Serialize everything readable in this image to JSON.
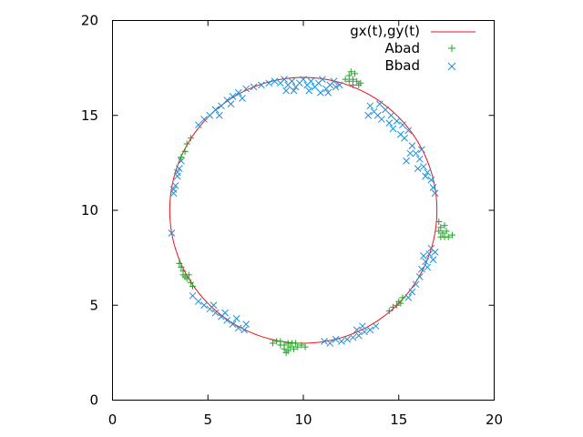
{
  "chart_data": {
    "type": "scatter",
    "title": "",
    "xlabel": "",
    "ylabel": "",
    "xlim": [
      0,
      20
    ],
    "ylim": [
      0,
      20
    ],
    "xticks": [
      "0",
      "5",
      "10",
      "15",
      "20"
    ],
    "yticks": [
      "0",
      "5",
      "10",
      "15",
      "20"
    ],
    "grid": false,
    "legend_position": "top-right",
    "series": [
      {
        "name": "gx(t),gy(t)",
        "kind": "line",
        "color": "#e8131b",
        "center": [
          10,
          10
        ],
        "radius": 7
      },
      {
        "name": "Abad",
        "kind": "points",
        "marker": "plus",
        "color": "#16a81d",
        "points": [
          [
            12.2,
            16.9
          ],
          [
            12.4,
            16.8
          ],
          [
            12.4,
            17.1
          ],
          [
            12.6,
            16.9
          ],
          [
            12.7,
            17.2
          ],
          [
            12.8,
            16.8
          ],
          [
            12.6,
            16.6
          ],
          [
            12.9,
            16.6
          ],
          [
            12.5,
            17.3
          ],
          [
            13.0,
            16.7
          ],
          [
            17.1,
            9.4
          ],
          [
            17.2,
            9.1
          ],
          [
            17.4,
            9.2
          ],
          [
            17.3,
            8.8
          ],
          [
            17.5,
            8.9
          ],
          [
            17.6,
            8.6
          ],
          [
            17.8,
            8.7
          ],
          [
            17.1,
            8.9
          ],
          [
            17.4,
            8.6
          ],
          [
            17.2,
            8.6
          ],
          [
            14.5,
            4.7
          ],
          [
            14.7,
            4.9
          ],
          [
            14.9,
            5.0
          ],
          [
            15.0,
            5.2
          ],
          [
            15.2,
            5.4
          ],
          [
            15.1,
            5.1
          ],
          [
            8.4,
            3.0
          ],
          [
            8.6,
            3.1
          ],
          [
            8.8,
            2.9
          ],
          [
            9.0,
            2.7
          ],
          [
            9.2,
            2.6
          ],
          [
            9.3,
            2.8
          ],
          [
            9.5,
            2.7
          ],
          [
            9.7,
            2.8
          ],
          [
            9.9,
            2.9
          ],
          [
            10.1,
            2.8
          ],
          [
            9.2,
            3.0
          ],
          [
            9.0,
            2.9
          ],
          [
            9.4,
            3.0
          ],
          [
            9.6,
            3.0
          ],
          [
            8.8,
            3.1
          ],
          [
            9.1,
            2.5
          ],
          [
            3.5,
            7.2
          ],
          [
            3.6,
            7.0
          ],
          [
            3.7,
            6.8
          ],
          [
            3.8,
            6.5
          ],
          [
            3.9,
            6.4
          ],
          [
            4.1,
            6.2
          ],
          [
            4.2,
            6.0
          ],
          [
            3.7,
            6.6
          ],
          [
            4.0,
            6.6
          ],
          [
            3.9,
            13.5
          ],
          [
            4.1,
            13.8
          ],
          [
            3.8,
            13.1
          ],
          [
            3.6,
            12.8
          ]
        ]
      },
      {
        "name": "Bbad",
        "kind": "points",
        "marker": "cross",
        "color": "#1f8fd8",
        "points": [
          [
            8.5,
            16.8
          ],
          [
            8.8,
            16.7
          ],
          [
            9.0,
            16.9
          ],
          [
            9.2,
            16.6
          ],
          [
            9.4,
            16.8
          ],
          [
            9.6,
            16.5
          ],
          [
            9.8,
            16.7
          ],
          [
            10.0,
            16.9
          ],
          [
            10.2,
            16.6
          ],
          [
            10.4,
            16.8
          ],
          [
            10.6,
            16.5
          ],
          [
            10.8,
            16.7
          ],
          [
            11.0,
            16.9
          ],
          [
            11.2,
            16.4
          ],
          [
            11.4,
            16.6
          ],
          [
            11.6,
            16.8
          ],
          [
            11.7,
            16.5
          ],
          [
            9.5,
            16.3
          ],
          [
            10.3,
            16.3
          ],
          [
            10.9,
            16.2
          ],
          [
            11.3,
            16.2
          ],
          [
            9.1,
            16.3
          ],
          [
            11.9,
            16.6
          ],
          [
            8.2,
            16.7
          ],
          [
            13.5,
            15.5
          ],
          [
            13.7,
            15.2
          ],
          [
            13.9,
            15.0
          ],
          [
            14.1,
            14.8
          ],
          [
            14.3,
            15.3
          ],
          [
            14.5,
            14.6
          ],
          [
            14.7,
            14.3
          ],
          [
            14.9,
            14.7
          ],
          [
            15.1,
            14.0
          ],
          [
            15.3,
            13.8
          ],
          [
            15.5,
            14.2
          ],
          [
            15.7,
            13.4
          ],
          [
            15.9,
            13.0
          ],
          [
            16.1,
            12.7
          ],
          [
            16.3,
            12.3
          ],
          [
            16.5,
            12.0
          ],
          [
            16.7,
            11.6
          ],
          [
            14.0,
            15.6
          ],
          [
            14.6,
            15.0
          ],
          [
            15.2,
            14.5
          ],
          [
            15.6,
            13.0
          ],
          [
            16.0,
            12.2
          ],
          [
            16.4,
            11.8
          ],
          [
            16.8,
            11.2
          ],
          [
            15.4,
            12.6
          ],
          [
            13.4,
            15.0
          ],
          [
            16.2,
            13.2
          ],
          [
            16.9,
            10.9
          ],
          [
            16.2,
            6.9
          ],
          [
            16.4,
            7.3
          ],
          [
            16.3,
            7.6
          ],
          [
            16.5,
            7.0
          ],
          [
            16.6,
            7.7
          ],
          [
            16.8,
            7.4
          ],
          [
            16.7,
            8.0
          ],
          [
            16.9,
            7.8
          ],
          [
            16.1,
            6.5
          ],
          [
            15.9,
            6.1
          ],
          [
            15.7,
            5.7
          ],
          [
            15.5,
            5.4
          ],
          [
            13.8,
            3.9
          ],
          [
            13.5,
            3.7
          ],
          [
            13.2,
            3.6
          ],
          [
            12.9,
            3.4
          ],
          [
            12.6,
            3.3
          ],
          [
            12.3,
            3.2
          ],
          [
            12.0,
            3.1
          ],
          [
            11.7,
            3.2
          ],
          [
            11.4,
            3.0
          ],
          [
            11.1,
            3.1
          ],
          [
            12.8,
            3.7
          ],
          [
            13.1,
            3.9
          ],
          [
            4.2,
            5.5
          ],
          [
            4.5,
            5.2
          ],
          [
            4.8,
            5.0
          ],
          [
            5.1,
            4.8
          ],
          [
            5.4,
            4.6
          ],
          [
            5.7,
            4.4
          ],
          [
            6.0,
            4.2
          ],
          [
            6.3,
            4.0
          ],
          [
            6.6,
            3.8
          ],
          [
            6.9,
            3.7
          ],
          [
            5.3,
            5.0
          ],
          [
            5.9,
            4.6
          ],
          [
            6.5,
            4.3
          ],
          [
            7.0,
            4.0
          ],
          [
            3.1,
            8.8
          ],
          [
            3.2,
            10.9
          ],
          [
            3.3,
            11.3
          ],
          [
            3.4,
            11.8
          ],
          [
            3.5,
            12.2
          ],
          [
            3.6,
            12.6
          ],
          [
            3.2,
            11.1
          ],
          [
            3.4,
            12.0
          ],
          [
            4.5,
            14.5
          ],
          [
            4.8,
            14.8
          ],
          [
            5.1,
            15.0
          ],
          [
            5.4,
            15.3
          ],
          [
            5.7,
            15.5
          ],
          [
            6.0,
            15.8
          ],
          [
            6.3,
            16.0
          ],
          [
            6.6,
            16.2
          ],
          [
            7.0,
            16.4
          ],
          [
            7.4,
            16.5
          ],
          [
            7.8,
            16.6
          ],
          [
            5.6,
            15.0
          ],
          [
            6.2,
            15.6
          ],
          [
            6.8,
            15.9
          ]
        ]
      }
    ]
  }
}
